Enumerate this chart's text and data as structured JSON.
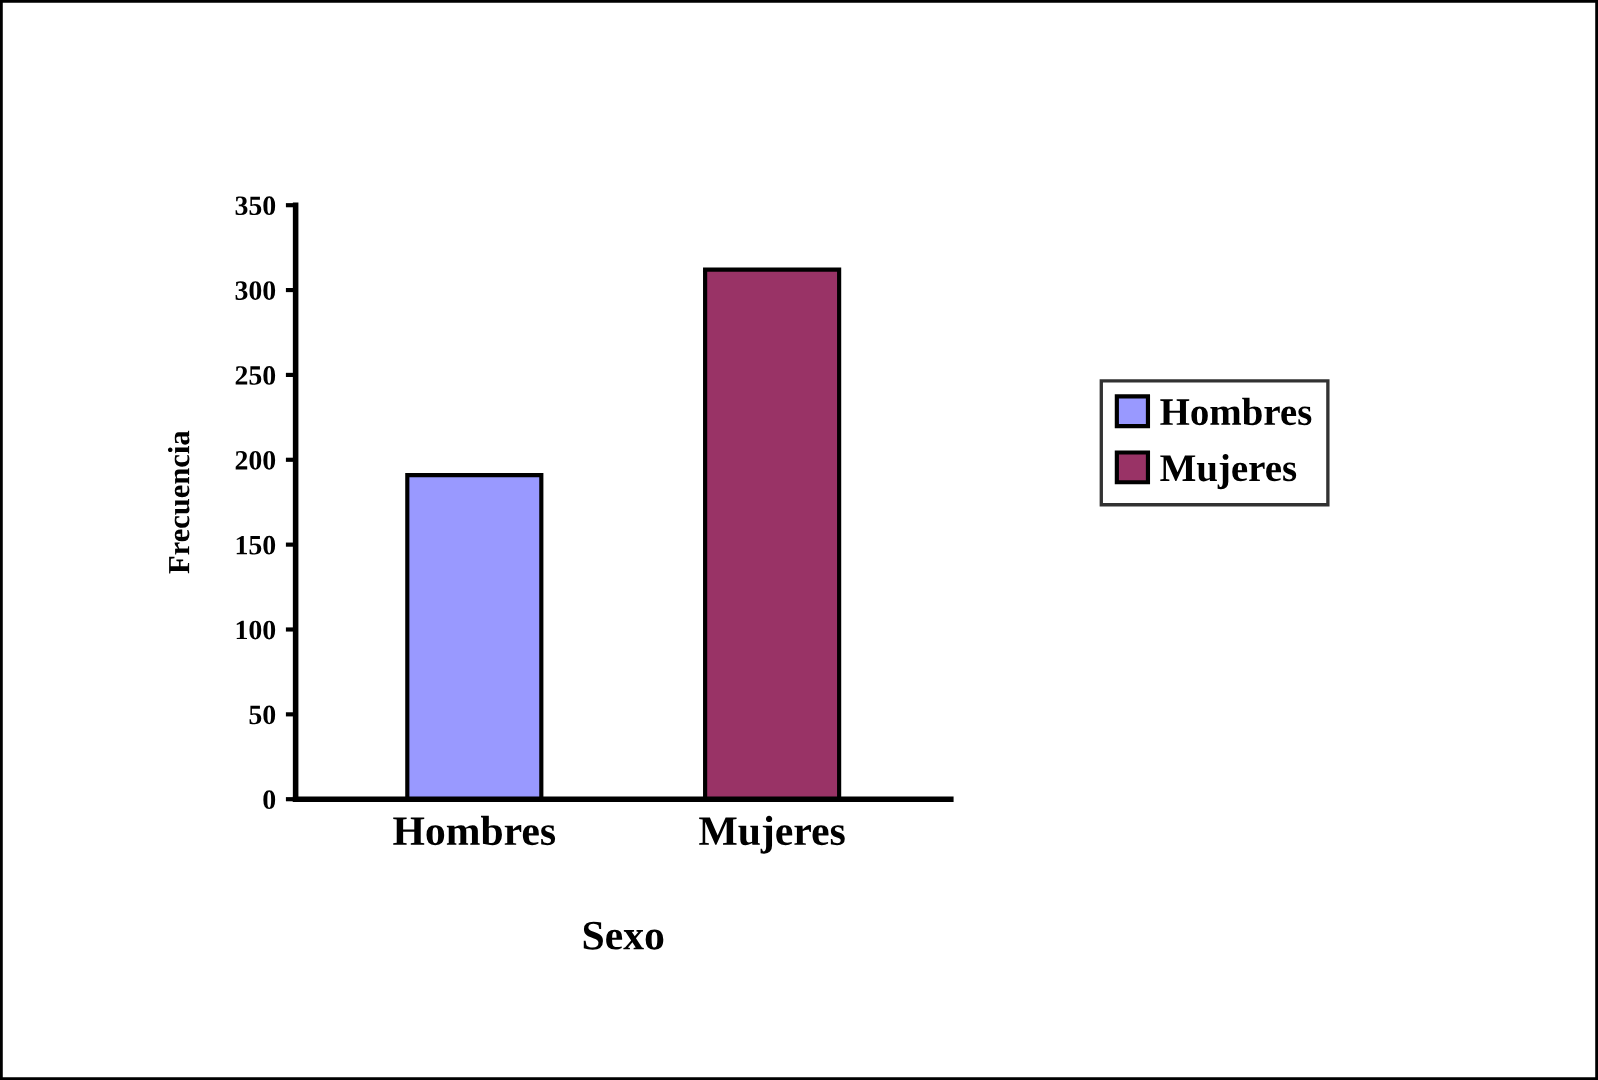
{
  "chart_data": {
    "type": "bar",
    "xlabel": "Sexo",
    "ylabel": "Frecuencia",
    "categories": [
      "Hombres",
      "Mujeres"
    ],
    "series": [
      {
        "name": "Hombres",
        "color": "#9999ff",
        "values": [
          191,
          null
        ]
      },
      {
        "name": "Mujeres",
        "color": "#993366",
        "values": [
          null,
          312
        ]
      }
    ],
    "ylim": [
      0,
      350
    ],
    "yticks": [
      0,
      50,
      100,
      150,
      200,
      250,
      300,
      350
    ],
    "grid": false,
    "legend": "right"
  }
}
